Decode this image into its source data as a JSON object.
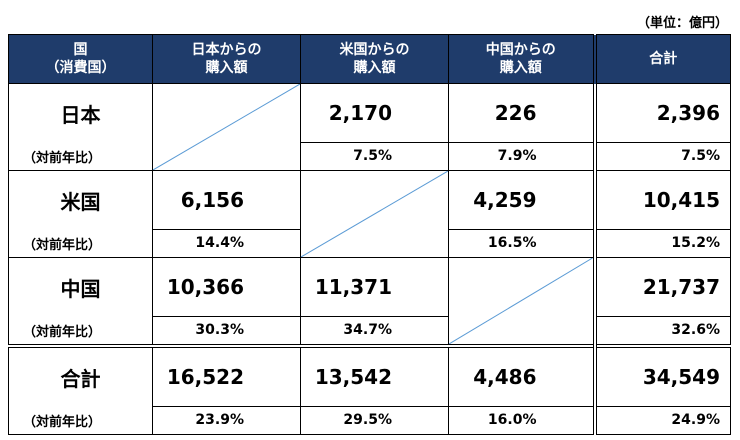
{
  "unit_note": "（単位：億円）",
  "header": {
    "col0": [
      "国",
      "（消費国）"
    ],
    "col1": [
      "日本からの",
      "購入額"
    ],
    "col2": [
      "米国からの",
      "購入額"
    ],
    "col3": [
      "中国からの",
      "購入額"
    ],
    "col4": "合計"
  },
  "sub_label": "（対前年比）",
  "rows": [
    {
      "country": "日本",
      "values": [
        "",
        "2,170",
        "226",
        "2,396"
      ],
      "yoy": [
        "",
        "7.5%",
        "7.9%",
        "7.5%"
      ],
      "diag_col": 1
    },
    {
      "country": "米国",
      "values": [
        "6,156",
        "",
        "4,259",
        "10,415"
      ],
      "yoy": [
        "14.4%",
        "",
        "16.5%",
        "15.2%"
      ],
      "diag_col": 2
    },
    {
      "country": "中国",
      "values": [
        "10,366",
        "11,371",
        "",
        "21,737"
      ],
      "yoy": [
        "30.3%",
        "34.7%",
        "",
        "32.6%"
      ],
      "diag_col": 3
    },
    {
      "country": "合計",
      "values": [
        "16,522",
        "13,542",
        "4,486",
        "34,549"
      ],
      "yoy": [
        "23.9%",
        "29.5%",
        "16.0%",
        "24.9%"
      ],
      "diag_col": 0
    }
  ],
  "colors": {
    "header_bg": "#1f3c6b",
    "diagonal": "#5b9bd5"
  }
}
